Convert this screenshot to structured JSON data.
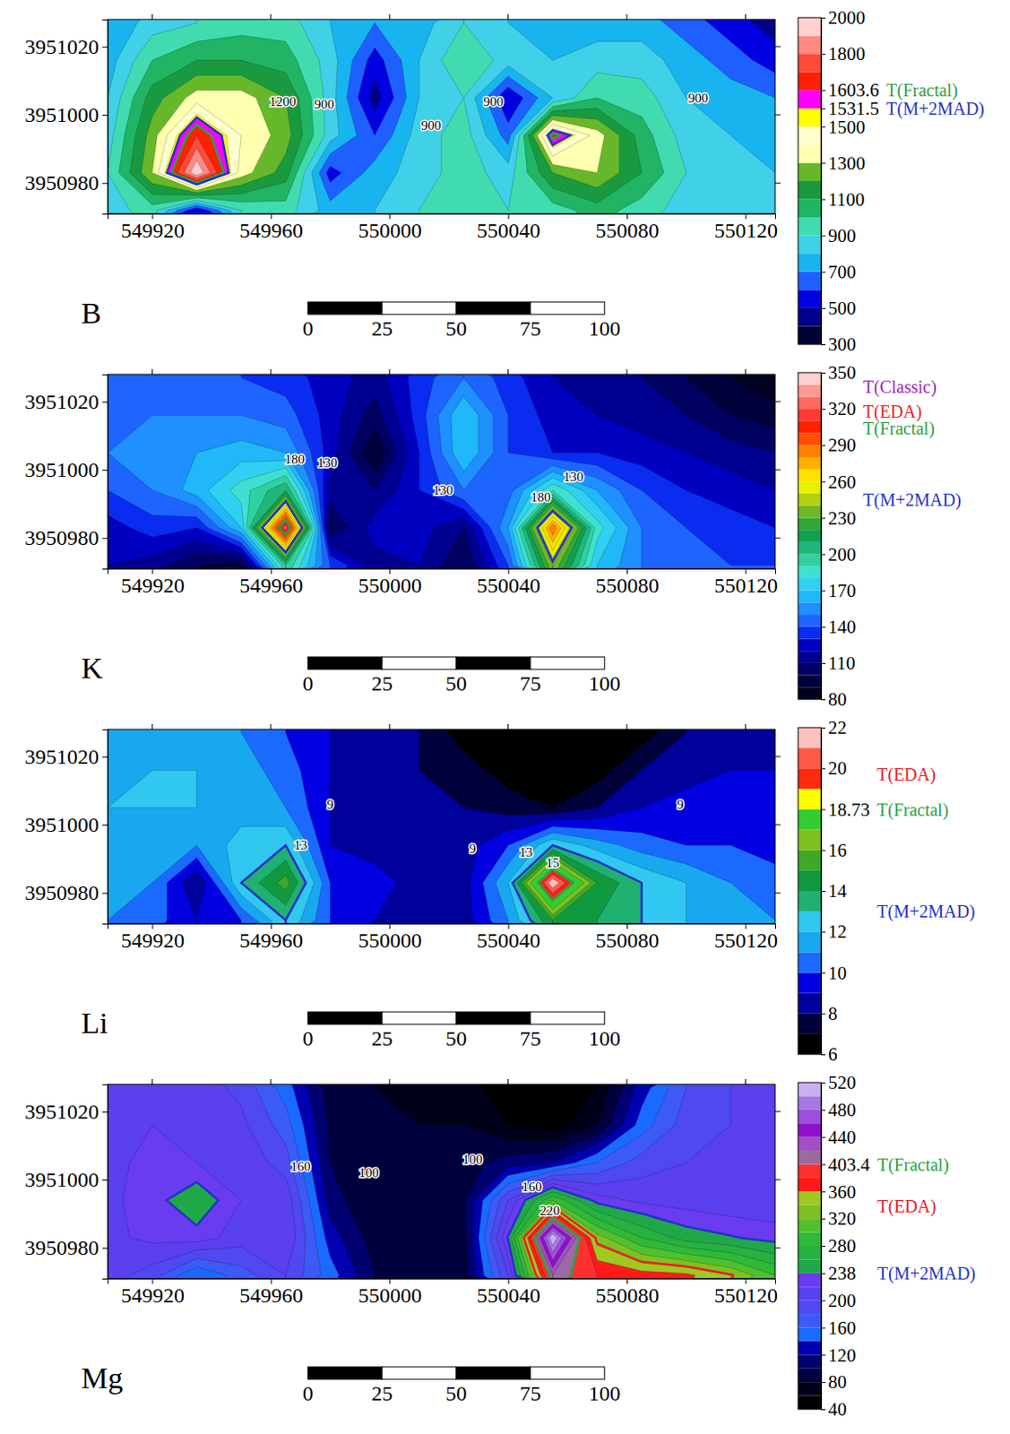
{
  "chart_data": [
    {
      "type": "contour",
      "title": "B",
      "xlim": [
        549905,
        550130
      ],
      "ylim": [
        3950971,
        3951028
      ],
      "xticks": [
        549920,
        549960,
        550000,
        550040,
        550080,
        550120
      ],
      "yticks": [
        3950980,
        3951000,
        3951020
      ],
      "field": {
        "x": [
          549905,
          549920,
          549935,
          549950,
          549965,
          549980,
          549995,
          550010,
          550025,
          550040,
          550055,
          550070,
          550085,
          550100,
          550115,
          550130
        ],
        "y": [
          3950972,
          3950983,
          3950994,
          3951005,
          3951016,
          3951027
        ],
        "values": [
          [
            850,
            950,
            500,
            900,
            950,
            750,
            800,
            900,
            1000,
            900,
            950,
            1050,
            950,
            850,
            800,
            800
          ],
          [
            900,
            1300,
            2000,
            1350,
            1150,
            550,
            750,
            850,
            950,
            850,
            1200,
            1300,
            1100,
            900,
            800,
            800
          ],
          [
            850,
            1250,
            1700,
            1400,
            1250,
            850,
            600,
            850,
            950,
            650,
            1650,
            1350,
            1050,
            850,
            800,
            750
          ],
          [
            800,
            1150,
            1350,
            1350,
            1200,
            850,
            450,
            800,
            900,
            500,
            800,
            1000,
            950,
            800,
            750,
            700
          ],
          [
            750,
            1000,
            1100,
            1100,
            1050,
            850,
            550,
            800,
            1000,
            850,
            800,
            850,
            850,
            750,
            650,
            550
          ],
          [
            700,
            850,
            900,
            950,
            950,
            800,
            700,
            750,
            900,
            800,
            750,
            750,
            750,
            650,
            550,
            450
          ]
        ]
      },
      "colorbar": {
        "thresholds": [
          300,
          400,
          500,
          600,
          700,
          800,
          900,
          1000,
          1100,
          1200,
          1300,
          1400,
          1500,
          1531.5,
          1603.6,
          1700,
          1800,
          1900,
          2000
        ],
        "colors": [
          "#000033",
          "#00008b",
          "#0000e0",
          "#1e60ff",
          "#18b4f0",
          "#40d0e8",
          "#40dcb0",
          "#20b464",
          "#1a9a40",
          "#66b82a",
          "#ffffb0",
          "#ffffcc",
          "#ffff00",
          "#ff00ff",
          "#ff2000",
          "#ff4a3a",
          "#ff8a80",
          "#ffd0d0"
        ],
        "ticks": [
          300,
          500,
          700,
          900,
          1100,
          1300,
          1500,
          1531.5,
          1603.6,
          1800,
          2000
        ]
      },
      "annotations": [
        {
          "value": 1603.6,
          "label": "T(Fractal)",
          "color": "#2ea043"
        },
        {
          "value": 1531.5,
          "label": "T(M+2MAD)",
          "color": "#2432c8"
        }
      ],
      "contour_labels": [
        {
          "x": 549964,
          "y": 3951004,
          "label": "1200"
        },
        {
          "x": 549978,
          "y": 3951003,
          "label": "900"
        },
        {
          "x": 550014,
          "y": 3950997,
          "label": "900"
        },
        {
          "x": 550035,
          "y": 3951004,
          "label": "900"
        },
        {
          "x": 550104,
          "y": 3951005,
          "label": "900"
        }
      ],
      "scale_bar": {
        "ticks": [
          0,
          25,
          50,
          75,
          100
        ]
      }
    },
    {
      "type": "contour",
      "title": "K",
      "xlim": [
        549905,
        550130
      ],
      "ylim": [
        3950971,
        3951028
      ],
      "xticks": [
        549920,
        549960,
        550000,
        550040,
        550080,
        550120
      ],
      "yticks": [
        3950980,
        3951000,
        3951020
      ],
      "field": {
        "x": [
          549905,
          549920,
          549935,
          549950,
          549965,
          549980,
          549995,
          550010,
          550025,
          550040,
          550055,
          550070,
          550085,
          550100,
          550115,
          550130
        ],
        "y": [
          3950972,
          3950983,
          3950994,
          3951005,
          3951016,
          3951027
        ],
        "values": [
          [
            120,
            115,
            100,
            95,
            200,
            140,
            115,
            120,
            100,
            140,
            240,
            170,
            150,
            145,
            140,
            140
          ],
          [
            125,
            135,
            130,
            170,
            330,
            100,
            125,
            125,
            110,
            160,
            290,
            185,
            150,
            140,
            135,
            130
          ],
          [
            140,
            150,
            165,
            185,
            210,
            115,
            110,
            130,
            150,
            145,
            190,
            160,
            140,
            130,
            125,
            120
          ],
          [
            150,
            155,
            160,
            165,
            160,
            125,
            90,
            130,
            170,
            140,
            130,
            130,
            125,
            120,
            115,
            110
          ],
          [
            145,
            150,
            150,
            150,
            145,
            125,
            105,
            135,
            170,
            140,
            125,
            120,
            115,
            110,
            100,
            95
          ],
          [
            140,
            145,
            145,
            140,
            135,
            125,
            115,
            135,
            150,
            135,
            120,
            115,
            110,
            100,
            90,
            80
          ]
        ]
      },
      "colorbar": {
        "thresholds": [
          80,
          90,
          100,
          110,
          120,
          130,
          140,
          150,
          160,
          170,
          180,
          190,
          200,
          210,
          220,
          230,
          240,
          250,
          260,
          270,
          280,
          290,
          300,
          310,
          320,
          330,
          340,
          350
        ],
        "colors": [
          "#000020",
          "#00003a",
          "#000060",
          "#000090",
          "#0000c0",
          "#0a2cf0",
          "#1e64ff",
          "#1e90ff",
          "#20b8f8",
          "#30d0f0",
          "#40e0d0",
          "#30d0a0",
          "#20b878",
          "#10a050",
          "#30a838",
          "#70b828",
          "#b0d010",
          "#e8f000",
          "#ffe000",
          "#ffb000",
          "#ff8000",
          "#ff5000",
          "#ff2000",
          "#ff3a30",
          "#ff6a60",
          "#ff9a90",
          "#ffd0d0"
        ],
        "ticks": [
          80,
          110,
          140,
          170,
          200,
          230,
          260,
          290,
          320,
          350
        ]
      },
      "annotations": [
        {
          "value": 338,
          "label": "T(Classic)",
          "color": "#9c27b0"
        },
        {
          "value": 318,
          "label": "T(EDA)",
          "color": "#e8202a"
        },
        {
          "value": 305,
          "label": "T(Fractal)",
          "color": "#2ea043"
        },
        {
          "value": 245,
          "label": "T(M+2MAD)",
          "color": "#2432c8"
        }
      ],
      "contour_labels": [
        {
          "x": 549968,
          "y": 3951003,
          "label": "180"
        },
        {
          "x": 549979,
          "y": 3951002,
          "label": "130"
        },
        {
          "x": 550018,
          "y": 3950994,
          "label": "130"
        },
        {
          "x": 550051,
          "y": 3950992,
          "label": "180"
        },
        {
          "x": 550062,
          "y": 3950998,
          "label": "130"
        }
      ],
      "scale_bar": {
        "ticks": [
          0,
          25,
          50,
          75,
          100
        ]
      }
    },
    {
      "type": "contour",
      "title": "Li",
      "xlim": [
        549905,
        550130
      ],
      "ylim": [
        3950971,
        3951028
      ],
      "xticks": [
        549920,
        549960,
        550000,
        550040,
        550080,
        550120
      ],
      "yticks": [
        3950980,
        3951000,
        3951020
      ],
      "field": {
        "x": [
          549905,
          549920,
          549935,
          549950,
          549965,
          549980,
          549995,
          550010,
          550025,
          550040,
          550055,
          550070,
          550085,
          550100,
          550115,
          550130
        ],
        "y": [
          3950972,
          3950983,
          3950994,
          3951005,
          3951016,
          3951027
        ],
        "values": [
          [
            11,
            10.5,
            9,
            10,
            13,
            10,
            9,
            8.5,
            8.5,
            11,
            15,
            14,
            13,
            12,
            11.5,
            11
          ],
          [
            11,
            11,
            8,
            13,
            15.5,
            10,
            9.5,
            8.5,
            8.5,
            12,
            22,
            15,
            13,
            12,
            11,
            10.5
          ],
          [
            11.5,
            11.5,
            11,
            12.5,
            13,
            9,
            8.5,
            8.5,
            8.5,
            10,
            13,
            11.5,
            10.5,
            10,
            10,
            9.5
          ],
          [
            12,
            12,
            12,
            11.5,
            11,
            9,
            8,
            8,
            8,
            7.5,
            7,
            8,
            9,
            9.5,
            9.5,
            9
          ],
          [
            11.5,
            12,
            12,
            11.5,
            10.5,
            9,
            8,
            8,
            7.5,
            6.5,
            6,
            6.5,
            8,
            8.5,
            9,
            9
          ],
          [
            11,
            11.5,
            11.5,
            11,
            10,
            9,
            8,
            8,
            6.5,
            6,
            6,
            6,
            6.5,
            8,
            8.5,
            8.5
          ]
        ]
      },
      "colorbar": {
        "thresholds": [
          6,
          7,
          8,
          9,
          10,
          11,
          12,
          13,
          14,
          15,
          16,
          17,
          18.73,
          19,
          20,
          21,
          22
        ],
        "colors": [
          "#000000",
          "#00003a",
          "#00009a",
          "#0000e0",
          "#1a6aff",
          "#18a8f0",
          "#30c8f0",
          "#20b070",
          "#109a40",
          "#40a828",
          "#80c020",
          "#33cc33",
          "#ffff00",
          "#ff2a10",
          "#ff5a48",
          "#ffc0c0"
        ],
        "ticks": [
          6,
          8,
          10,
          12,
          14,
          16,
          18.73,
          20,
          22
        ]
      },
      "annotations": [
        {
          "value": 19.7,
          "label": "T(EDA)",
          "color": "#e8202a"
        },
        {
          "value": 18.73,
          "label": "T(Fractal)",
          "color": "#2ea043"
        },
        {
          "value": 13,
          "label": "T(M+2MAD)",
          "color": "#2432c8"
        }
      ],
      "contour_labels": [
        {
          "x": 549980,
          "y": 3951006,
          "label": "9"
        },
        {
          "x": 549970,
          "y": 3950994,
          "label": "13"
        },
        {
          "x": 550028,
          "y": 3950993,
          "label": "9"
        },
        {
          "x": 550046,
          "y": 3950992,
          "label": "13"
        },
        {
          "x": 550055,
          "y": 3950989,
          "label": "15"
        },
        {
          "x": 550098,
          "y": 3951006,
          "label": "9"
        }
      ],
      "scale_bar": {
        "ticks": [
          0,
          25,
          50,
          75,
          100
        ]
      }
    },
    {
      "type": "contour",
      "title": "Mg",
      "xlim": [
        549905,
        550130
      ],
      "ylim": [
        3950971,
        3951028
      ],
      "xticks": [
        549920,
        549960,
        550000,
        550040,
        550080,
        550120
      ],
      "yticks": [
        3950980,
        3951000,
        3951020
      ],
      "field": {
        "x": [
          549905,
          549920,
          549935,
          549950,
          549965,
          549980,
          549995,
          550010,
          550025,
          550040,
          550055,
          550070,
          550085,
          550100,
          550115,
          550130
        ],
        "y": [
          3950972,
          3950983,
          3950994,
          3951005,
          3951016,
          3951027
        ],
        "values": [
          [
            210,
            190,
            140,
            170,
            200,
            150,
            100,
            90,
            90,
            200,
            420,
            380,
            370,
            365,
            340,
            300
          ],
          [
            215,
            225,
            230,
            210,
            220,
            130,
            90,
            85,
            90,
            240,
            520,
            330,
            280,
            250,
            240,
            230
          ],
          [
            215,
            230,
            255,
            220,
            215,
            110,
            80,
            80,
            95,
            200,
            300,
            230,
            215,
            210,
            205,
            205
          ],
          [
            215,
            225,
            220,
            215,
            190,
            100,
            80,
            80,
            90,
            110,
            120,
            160,
            190,
            200,
            205,
            205
          ],
          [
            215,
            220,
            215,
            205,
            170,
            95,
            80,
            80,
            80,
            60,
            50,
            80,
            150,
            190,
            200,
            205
          ],
          [
            215,
            215,
            210,
            195,
            150,
            90,
            80,
            75,
            70,
            45,
            42,
            60,
            130,
            180,
            200,
            205
          ]
        ]
      },
      "colorbar": {
        "thresholds": [
          40,
          60,
          80,
          100,
          120,
          140,
          160,
          180,
          200,
          220,
          238,
          260,
          280,
          300,
          320,
          340,
          360,
          380,
          403.4,
          420,
          440,
          460,
          480,
          500,
          520
        ],
        "colors": [
          "#000000",
          "#00001a",
          "#00003c",
          "#000070",
          "#0000b0",
          "#1a6aff",
          "#3c5af5",
          "#5048f0",
          "#5a40ee",
          "#6a3cf0",
          "#20a848",
          "#28b040",
          "#30b838",
          "#50c030",
          "#80c020",
          "#a0c820",
          "#ff1a1a",
          "#ff3030",
          "#9a6aa0",
          "#a050c0",
          "#9010c8",
          "#9a50d8",
          "#a878e0",
          "#c8b0f0"
        ],
        "ticks": [
          40,
          80,
          120,
          160,
          200,
          238,
          280,
          320,
          360,
          403.4,
          440,
          480,
          520
        ]
      },
      "annotations": [
        {
          "value": 403.4,
          "label": "T(Fractal)",
          "color": "#2ea043"
        },
        {
          "value": 338,
          "label": "T(EDA)",
          "color": "#e8202a"
        },
        {
          "value": 238,
          "label": "T(M+2MAD)",
          "color": "#2432c8"
        }
      ],
      "contour_labels": [
        {
          "x": 549970,
          "y": 3951004,
          "label": "160"
        },
        {
          "x": 549993,
          "y": 3951002,
          "label": "100"
        },
        {
          "x": 550028,
          "y": 3951006,
          "label": "100"
        },
        {
          "x": 550048,
          "y": 3950998,
          "label": "160"
        },
        {
          "x": 550054,
          "y": 3950991,
          "label": "220"
        }
      ],
      "scale_bar": {
        "ticks": [
          0,
          25,
          50,
          75,
          100
        ]
      }
    }
  ]
}
